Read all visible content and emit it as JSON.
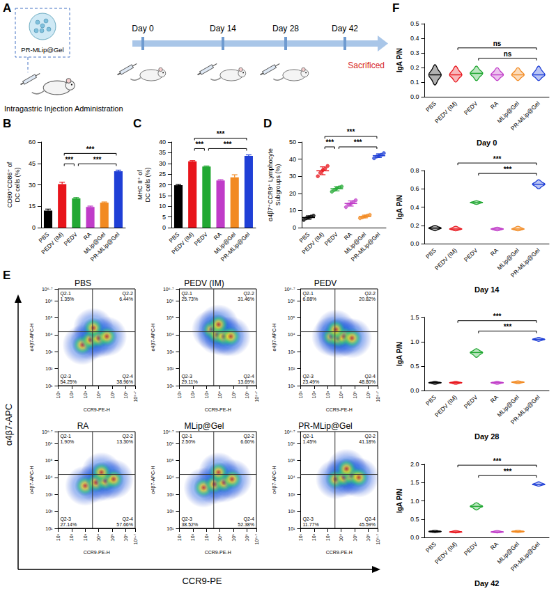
{
  "schematic": {
    "label": "A",
    "product": "PR-MLip@Gel",
    "route": "Intragastric Injection Administration",
    "timeline": [
      "Day 0",
      "Day 14",
      "Day 28",
      "Day 42"
    ],
    "end": "Sacrificed"
  },
  "chart_data": [
    {
      "label": "B",
      "type": "bar",
      "y_label": "CD80⁺CD86⁺ of DC cells (%)",
      "categories": [
        "PBS",
        "PEDV (IM)",
        "PEDV",
        "RA",
        "MLip@Gel",
        "PR-MLip@Gel"
      ],
      "colors": [
        "#000000",
        "#e8141b",
        "#22a833",
        "#c03cc8",
        "#f28a22",
        "#1f3fd6"
      ],
      "values": [
        12,
        30.5,
        20.5,
        14.5,
        17.5,
        39.5
      ],
      "errors": [
        1,
        1.3,
        0.6,
        0.6,
        0.5,
        0.8
      ],
      "ylim": [
        0,
        60
      ],
      "yticks": [
        0,
        15,
        30,
        45,
        60
      ],
      "comparisons": [
        {
          "pair": [
            "PEDV (IM)",
            "PEDV"
          ],
          "label": "***"
        },
        {
          "pair": [
            "PEDV",
            "PR-MLip@Gel"
          ],
          "label": "***"
        },
        {
          "pair": [
            "PEDV (IM)",
            "PR-MLip@Gel"
          ],
          "label": "***"
        }
      ]
    },
    {
      "label": "C",
      "type": "bar",
      "y_label": "MHC II⁺ of DC cells (%)",
      "categories": [
        "PBS",
        "PEDV (IM)",
        "PEDV",
        "RA",
        "MLip@Gel",
        "PR-MLip@Gel"
      ],
      "colors": [
        "#000000",
        "#e8141b",
        "#22a833",
        "#c03cc8",
        "#f28a22",
        "#1f3fd6"
      ],
      "values": [
        19.8,
        31,
        28.5,
        22,
        23.5,
        33.5
      ],
      "errors": [
        0.4,
        0.3,
        0.3,
        0.4,
        1.2,
        0.5
      ],
      "ylim": [
        0,
        40
      ],
      "yticks": [
        0,
        5,
        10,
        15,
        20,
        25,
        30,
        35,
        40
      ],
      "comparisons": [
        {
          "pair": [
            "PEDV (IM)",
            "PEDV"
          ],
          "label": "***"
        },
        {
          "pair": [
            "PEDV",
            "PR-MLip@Gel"
          ],
          "label": "***"
        },
        {
          "pair": [
            "PEDV (IM)",
            "PR-MLip@Gel"
          ],
          "label": "***"
        }
      ]
    },
    {
      "label": "D",
      "type": "dot",
      "y_label": "α4β7⁺CCR9⁺ Lymphocyte Subgroups (%)",
      "categories": [
        "PBS",
        "PEDV (IM)",
        "PEDV",
        "RA",
        "MLip@Gel",
        "PR-MLip@Gel"
      ],
      "colors": [
        "#000000",
        "#e8141b",
        "#22a833",
        "#c03cc8",
        "#f28a22",
        "#1f3fd6"
      ],
      "values": [
        5.9,
        33.2,
        22.7,
        14.1,
        6.5,
        42.0
      ],
      "errors": [
        1.0,
        2.3,
        1.2,
        1.5,
        0.8,
        1.1
      ],
      "points": [
        [
          4.5,
          5.5,
          6,
          6.5,
          7
        ],
        [
          30,
          32,
          33.5,
          34.5,
          36
        ],
        [
          21,
          22,
          23,
          23.5,
          24
        ],
        [
          12,
          13.5,
          14,
          15,
          16
        ],
        [
          5.5,
          6,
          6.5,
          7,
          7.5
        ],
        [
          40.5,
          41.5,
          42,
          42.5,
          43.5
        ]
      ],
      "ylim": [
        0,
        50
      ],
      "yticks": [
        0,
        10,
        20,
        30,
        40,
        50
      ],
      "comparisons": [
        {
          "pair": [
            "PEDV (IM)",
            "PEDV"
          ],
          "label": "***"
        },
        {
          "pair": [
            "PEDV",
            "PR-MLip@Gel"
          ],
          "label": "***"
        },
        {
          "pair": [
            "PEDV (IM)",
            "PR-MLip@Gel"
          ],
          "label": "***"
        }
      ]
    },
    {
      "label": "E",
      "type": "density",
      "log": true,
      "x_label": "CCR9-PE",
      "y_label": "α4β7-APC",
      "plot_x_label": "CCR9-PE-H",
      "plot_y_label": "α4β7-APC-H",
      "xlim": [
        10,
        5011872
      ],
      "ylim": [
        10,
        5011872
      ],
      "xticks": [
        {
          "value": 10,
          "label": "10¹"
        },
        {
          "value": 100,
          "label": "10²"
        },
        {
          "value": 1000,
          "label": "10³"
        },
        {
          "value": 10000,
          "label": "10⁴"
        },
        {
          "value": 100000,
          "label": "10⁵"
        },
        {
          "value": 1000000,
          "label": "10⁶"
        },
        {
          "value": 5011872,
          "label": "10⁶·⁷"
        }
      ],
      "yticks": [
        {
          "value": 10,
          "label": "10¹"
        },
        {
          "value": 100,
          "label": "10²"
        },
        {
          "value": 1000,
          "label": "10³"
        },
        {
          "value": 10000,
          "label": "10⁴"
        },
        {
          "value": 100000,
          "label": "10⁵"
        },
        {
          "value": 1000000,
          "label": "10⁶"
        },
        {
          "value": 5011872,
          "label": "10⁶·⁷"
        }
      ],
      "plots": [
        {
          "title": "PBS",
          "gate": [
            3500,
            15000
          ],
          "cloud": [
            [
              630,
              2500
            ],
            [
              2500,
              5000
            ],
            [
              10000,
              6300
            ],
            [
              40000,
              7900
            ],
            [
              4000,
              25000
            ]
          ],
          "quadrants": [
            {
              "name": "Q2-1",
              "value": 1.35,
              "label": "1.35%"
            },
            {
              "name": "Q2-2",
              "value": 6.44,
              "label": "6.44%"
            },
            {
              "name": "Q2-3",
              "value": 54.25,
              "label": "54.25%"
            },
            {
              "name": "Q2-4",
              "value": 38.96,
              "label": "38.96%"
            }
          ]
        },
        {
          "title": "PEDV (IM)",
          "gate": [
            3500,
            15000
          ],
          "cloud": [
            [
              2500,
              20000
            ],
            [
              6300,
              10000
            ],
            [
              20000,
              7900
            ],
            [
              7900,
              40000
            ],
            [
              63000,
              7900
            ]
          ],
          "quadrants": [
            {
              "name": "Q2-1",
              "value": 25.73,
              "label": "25.73%"
            },
            {
              "name": "Q2-2",
              "value": 31.46,
              "label": "31.46%"
            },
            {
              "name": "Q2-3",
              "value": 29.11,
              "label": "29.11%"
            },
            {
              "name": "Q2-4",
              "value": 13.69,
              "label": "13.69%"
            }
          ]
        },
        {
          "title": "PEDV",
          "gate": [
            3500,
            15000
          ],
          "cloud": [
            [
              2000,
              7900
            ],
            [
              6300,
              6300
            ],
            [
              16000,
              7900
            ],
            [
              4000,
              20000
            ],
            [
              63000,
              6300
            ]
          ],
          "quadrants": [
            {
              "name": "Q2-1",
              "value": 6.88,
              "label": "6.88%"
            },
            {
              "name": "Q2-2",
              "value": 20.82,
              "label": "20.82%"
            },
            {
              "name": "Q2-3",
              "value": 23.49,
              "label": "23.49%"
            },
            {
              "name": "Q2-4",
              "value": 48.8,
              "label": "48.80%"
            }
          ]
        },
        {
          "title": "RA",
          "gate": [
            3500,
            15000
          ],
          "cloud": [
            [
              1000,
              3200
            ],
            [
              6300,
              5000
            ],
            [
              32000,
              6300
            ],
            [
              126000,
              7900
            ],
            [
              16000,
              20000
            ]
          ],
          "quadrants": [
            {
              "name": "Q2-1",
              "value": 1.9,
              "label": "1.90%"
            },
            {
              "name": "Q2-2",
              "value": 13.3,
              "label": "13.30%"
            },
            {
              "name": "Q2-3",
              "value": 27.14,
              "label": "27.14%"
            },
            {
              "name": "Q2-4",
              "value": 57.66,
              "label": "57.66%"
            }
          ]
        },
        {
          "title": "MLip@Gel",
          "gate": [
            3500,
            15000
          ],
          "cloud": [
            [
              630,
              2500
            ],
            [
              4000,
              4000
            ],
            [
              20000,
              5000
            ],
            [
              79000,
              7900
            ],
            [
              7900,
              20000
            ]
          ],
          "quadrants": [
            {
              "name": "Q2-1",
              "value": 2.5,
              "label": "2.50%"
            },
            {
              "name": "Q2-2",
              "value": 6.6,
              "label": "6.60%"
            },
            {
              "name": "Q2-3",
              "value": 38.52,
              "label": "38.52%"
            },
            {
              "name": "Q2-4",
              "value": 52.38,
              "label": "52.38%"
            }
          ]
        },
        {
          "title": "PR-MLip@Gel",
          "gate": [
            3500,
            15000
          ],
          "cloud": [
            [
              4000,
              7900
            ],
            [
              16000,
              10000
            ],
            [
              63000,
              12600
            ],
            [
              25000,
              32000
            ],
            [
              200000,
              10000
            ]
          ],
          "quadrants": [
            {
              "name": "Q2-1",
              "value": 1.45,
              "label": "1.45%"
            },
            {
              "name": "Q2-2",
              "value": 41.18,
              "label": "41.18%"
            },
            {
              "name": "Q2-3",
              "value": 11.77,
              "label": "11.77%"
            },
            {
              "name": "Q2-4",
              "value": 45.59,
              "label": "45.59%"
            }
          ]
        }
      ]
    },
    {
      "label": "F",
      "type": "violin",
      "y_label": "IgA P/N",
      "categories": [
        "PBS",
        "PEDV (IM)",
        "PEDV",
        "RA",
        "MLip@Gel",
        "PR-MLip@Gel"
      ],
      "colors": [
        "#000000",
        "#e8141b",
        "#22a833",
        "#c03cc8",
        "#f28a22",
        "#1f3fd6"
      ],
      "plots": [
        {
          "title": "Day 0",
          "ylim": [
            0,
            0.5
          ],
          "yticks": [
            {
              "value": 0,
              "label": "0.0"
            },
            0.1,
            0.2,
            0.3,
            0.4,
            0.5
          ],
          "values": [
            0.15,
            0.15,
            0.16,
            0.15,
            0.15,
            0.15
          ],
          "ranges": [
            [
              0.08,
              0.22
            ],
            [
              0.1,
              0.21
            ],
            [
              0.11,
              0.21
            ],
            [
              0.11,
              0.2
            ],
            [
              0.11,
              0.2
            ],
            [
              0.11,
              0.21
            ]
          ],
          "comparisons": [
            {
              "pair": [
                "PEDV",
                "PR-MLip@Gel"
              ],
              "label": "ns"
            },
            {
              "pair": [
                "PEDV (IM)",
                "PR-MLip@Gel"
              ],
              "label": "ns"
            }
          ]
        },
        {
          "title": "Day 14",
          "ylim": [
            0,
            0.8
          ],
          "yticks": [
            {
              "value": 0,
              "label": "0.0"
            },
            0.2,
            0.4,
            0.6,
            0.8
          ],
          "values": [
            0.17,
            0.16,
            0.45,
            0.16,
            0.16,
            0.65
          ],
          "ranges": [
            [
              0.14,
              0.2
            ],
            [
              0.14,
              0.19
            ],
            [
              0.43,
              0.47
            ],
            [
              0.14,
              0.18
            ],
            [
              0.14,
              0.19
            ],
            [
              0.6,
              0.7
            ]
          ],
          "comparisons": [
            {
              "pair": [
                "PEDV",
                "PR-MLip@Gel"
              ],
              "label": "***"
            },
            {
              "pair": [
                "PEDV (IM)",
                "PR-MLip@Gel"
              ],
              "label": "***"
            }
          ]
        },
        {
          "title": "Day 28",
          "ylim": [
            0,
            1.5
          ],
          "yticks": [
            {
              "value": 0,
              "label": "0.0"
            },
            0.5,
            {
              "value": 1,
              "label": "1.0"
            },
            1.5
          ],
          "values": [
            0.16,
            0.16,
            0.78,
            0.16,
            0.17,
            1.05
          ],
          "ranges": [
            [
              0.13,
              0.19
            ],
            [
              0.13,
              0.19
            ],
            [
              0.68,
              0.86
            ],
            [
              0.13,
              0.19
            ],
            [
              0.14,
              0.2
            ],
            [
              1.01,
              1.09
            ]
          ],
          "comparisons": [
            {
              "pair": [
                "PEDV",
                "PR-MLip@Gel"
              ],
              "label": "***"
            },
            {
              "pair": [
                "PEDV (IM)",
                "PR-MLip@Gel"
              ],
              "label": "***"
            }
          ]
        },
        {
          "title": "Day 42",
          "ylim": [
            0,
            2
          ],
          "yticks": [
            {
              "value": 0,
              "label": "0.0"
            },
            0.5,
            {
              "value": 1,
              "label": "1.0"
            },
            1.5,
            {
              "value": 2,
              "label": "2.0"
            }
          ],
          "values": [
            0.16,
            0.15,
            0.85,
            0.15,
            0.16,
            1.45
          ],
          "ranges": [
            [
              0.13,
              0.2
            ],
            [
              0.12,
              0.19
            ],
            [
              0.75,
              0.95
            ],
            [
              0.12,
              0.19
            ],
            [
              0.13,
              0.2
            ],
            [
              1.4,
              1.52
            ]
          ],
          "comparisons": [
            {
              "pair": [
                "PEDV",
                "PR-MLip@Gel"
              ],
              "label": "***"
            },
            {
              "pair": [
                "PEDV (IM)",
                "PR-MLip@Gel"
              ],
              "label": "***"
            }
          ]
        }
      ]
    }
  ]
}
